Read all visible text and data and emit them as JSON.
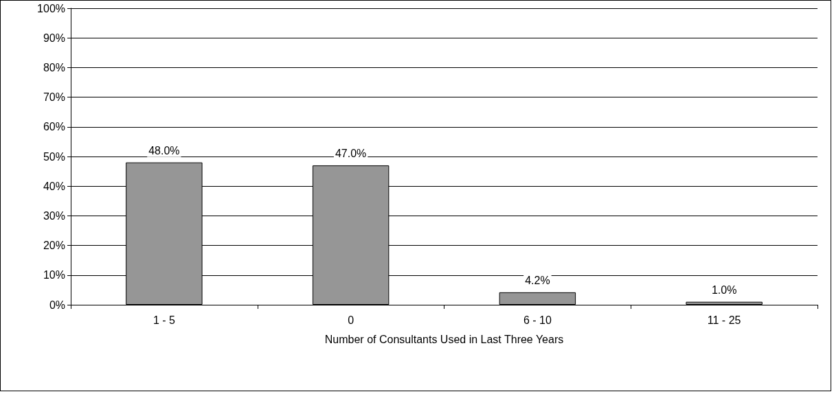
{
  "chart_data": {
    "type": "bar",
    "xlabel": "Number of Consultants Used in Last Three Years",
    "categories": [
      "1 - 5",
      "0",
      "6 - 10",
      "11 - 25"
    ],
    "values": [
      48.0,
      47.0,
      4.2,
      1.0
    ],
    "value_labels": [
      "48.0%",
      "47.0%",
      "4.2%",
      "1.0%"
    ],
    "color": "#969696",
    "ylim": [
      0,
      100
    ],
    "yticks": [
      {
        "value": 0,
        "label": "0%"
      },
      {
        "value": 10,
        "label": "10%"
      },
      {
        "value": 20,
        "label": "20%"
      },
      {
        "value": 30,
        "label": "30%"
      },
      {
        "value": 40,
        "label": "40%"
      },
      {
        "value": 50,
        "label": "50%"
      },
      {
        "value": 60,
        "label": "60%"
      },
      {
        "value": 70,
        "label": "70%"
      },
      {
        "value": 80,
        "label": "80%"
      },
      {
        "value": 90,
        "label": "90%"
      },
      {
        "value": 100,
        "label": "100%"
      }
    ],
    "grid": "y"
  }
}
